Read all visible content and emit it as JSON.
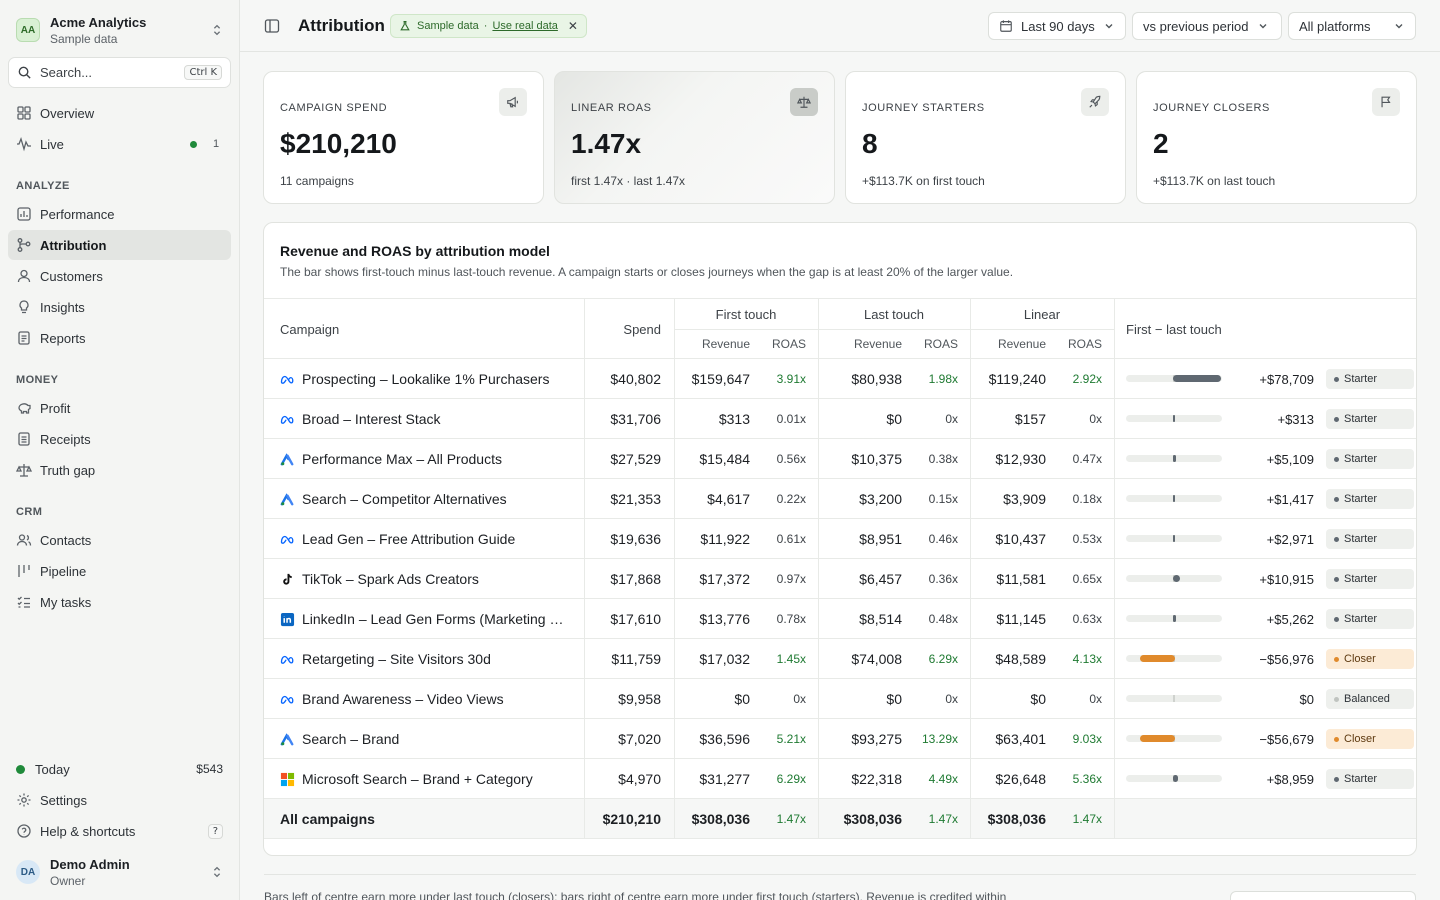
{
  "sidebar": {
    "org": {
      "initials": "AA",
      "name": "Acme Analytics",
      "sub": "Sample data"
    },
    "search": {
      "placeholder": "Search...",
      "shortcut": "Ctrl K"
    },
    "top_items": [
      {
        "label": "Overview",
        "icon": "grid-icon"
      },
      {
        "label": "Live",
        "icon": "activity-icon",
        "count": "1"
      }
    ],
    "sections": [
      {
        "label": "ANALYZE",
        "items": [
          "Performance",
          "Attribution",
          "Customers",
          "Insights",
          "Reports"
        ]
      },
      {
        "label": "MONEY",
        "items": [
          "Profit",
          "Receipts",
          "Truth gap"
        ]
      },
      {
        "label": "CRM",
        "items": [
          "Contacts",
          "Pipeline",
          "My tasks"
        ]
      }
    ],
    "active": "Attribution",
    "today": {
      "label": "Today",
      "value": "$543"
    },
    "settings": "Settings",
    "help": {
      "label": "Help & shortcuts",
      "key": "?"
    },
    "user": {
      "initials": "DA",
      "name": "Demo Admin",
      "role": "Owner"
    }
  },
  "header": {
    "title": "Attribution",
    "chip": {
      "label": "Sample data",
      "sep": "·",
      "link": "Use real data"
    },
    "date_range": "Last 90 days",
    "compare": "vs previous period",
    "platforms": "All platforms"
  },
  "cards": [
    {
      "label": "CAMPAIGN SPEND",
      "value": "$210,210",
      "sub": "11 campaigns",
      "icon": "megaphone-icon"
    },
    {
      "label": "LINEAR ROAS",
      "value": "1.47x",
      "sub": "first 1.47x · last 1.47x",
      "icon": "scale-icon"
    },
    {
      "label": "JOURNEY STARTERS",
      "value": "8",
      "sub": "+$113.7K on first touch",
      "icon": "rocket-icon"
    },
    {
      "label": "JOURNEY CLOSERS",
      "value": "2",
      "sub": "+$113.7K on last touch",
      "icon": "flag-icon"
    }
  ],
  "table": {
    "title": "Revenue and ROAS by attribution model",
    "description": "The bar shows first-touch minus last-touch revenue. A campaign starts or closes journeys when the gap is at least 20% of the larger value.",
    "headers": {
      "campaign": "Campaign",
      "spend": "Spend",
      "first": "First touch",
      "last": "Last touch",
      "linear": "Linear",
      "revenue": "Revenue",
      "roas": "ROAS",
      "gap": "First − last touch"
    },
    "rows": [
      {
        "platform": "meta",
        "campaign": "Prospecting – Lookalike 1% Purchasers",
        "spend": "$40,802",
        "first_rev": "$159,647",
        "first_roas": "3.91x",
        "last_rev": "$80,938",
        "last_roas": "1.98x",
        "lin_rev": "$119,240",
        "lin_roas": "2.92x",
        "gap": "+$78,709",
        "gap_value": 78709,
        "role": "Starter"
      },
      {
        "platform": "meta",
        "campaign": "Broad – Interest Stack",
        "spend": "$31,706",
        "first_rev": "$313",
        "first_roas": "0.01x",
        "last_rev": "$0",
        "last_roas": "0x",
        "lin_rev": "$157",
        "lin_roas": "0x",
        "gap": "+$313",
        "gap_value": 313,
        "role": "Starter"
      },
      {
        "platform": "google",
        "campaign": "Performance Max – All Products",
        "spend": "$27,529",
        "first_rev": "$15,484",
        "first_roas": "0.56x",
        "last_rev": "$10,375",
        "last_roas": "0.38x",
        "lin_rev": "$12,930",
        "lin_roas": "0.47x",
        "gap": "+$5,109",
        "gap_value": 5109,
        "role": "Starter"
      },
      {
        "platform": "google",
        "campaign": "Search – Competitor Alternatives",
        "spend": "$21,353",
        "first_rev": "$4,617",
        "first_roas": "0.22x",
        "last_rev": "$3,200",
        "last_roas": "0.15x",
        "lin_rev": "$3,909",
        "lin_roas": "0.18x",
        "gap": "+$1,417",
        "gap_value": 1417,
        "role": "Starter"
      },
      {
        "platform": "meta",
        "campaign": "Lead Gen – Free Attribution Guide",
        "spend": "$19,636",
        "first_rev": "$11,922",
        "first_roas": "0.61x",
        "last_rev": "$8,951",
        "last_roas": "0.46x",
        "lin_rev": "$10,437",
        "lin_roas": "0.53x",
        "gap": "+$2,971",
        "gap_value": 2971,
        "role": "Starter"
      },
      {
        "platform": "tiktok",
        "campaign": "TikTok – Spark Ads Creators",
        "spend": "$17,868",
        "first_rev": "$17,372",
        "first_roas": "0.97x",
        "last_rev": "$6,457",
        "last_roas": "0.36x",
        "lin_rev": "$11,581",
        "lin_roas": "0.65x",
        "gap": "+$10,915",
        "gap_value": 10915,
        "role": "Starter"
      },
      {
        "platform": "linkedin",
        "campaign": "LinkedIn – Lead Gen Forms (Marketing …",
        "spend": "$17,610",
        "first_rev": "$13,776",
        "first_roas": "0.78x",
        "last_rev": "$8,514",
        "last_roas": "0.48x",
        "lin_rev": "$11,145",
        "lin_roas": "0.63x",
        "gap": "+$5,262",
        "gap_value": 5262,
        "role": "Starter"
      },
      {
        "platform": "meta",
        "campaign": "Retargeting – Site Visitors 30d",
        "spend": "$11,759",
        "first_rev": "$17,032",
        "first_roas": "1.45x",
        "last_rev": "$74,008",
        "last_roas": "6.29x",
        "lin_rev": "$48,589",
        "lin_roas": "4.13x",
        "gap": "−$56,976",
        "gap_value": -56976,
        "role": "Closer"
      },
      {
        "platform": "meta",
        "campaign": "Brand Awareness – Video Views",
        "spend": "$9,958",
        "first_rev": "$0",
        "first_roas": "0x",
        "last_rev": "$0",
        "last_roas": "0x",
        "lin_rev": "$0",
        "lin_roas": "0x",
        "gap": "$0",
        "gap_value": 0,
        "role": "Balanced"
      },
      {
        "platform": "google",
        "campaign": "Search – Brand",
        "spend": "$7,020",
        "first_rev": "$36,596",
        "first_roas": "5.21x",
        "last_rev": "$93,275",
        "last_roas": "13.29x",
        "lin_rev": "$63,401",
        "lin_roas": "9.03x",
        "gap": "−$56,679",
        "gap_value": -56679,
        "role": "Closer"
      },
      {
        "platform": "microsoft",
        "campaign": "Microsoft Search – Brand + Category",
        "spend": "$4,970",
        "first_rev": "$31,277",
        "first_roas": "6.29x",
        "last_rev": "$22,318",
        "last_roas": "4.49x",
        "lin_rev": "$26,648",
        "lin_roas": "5.36x",
        "gap": "+$8,959",
        "gap_value": 8959,
        "role": "Starter"
      }
    ],
    "total": {
      "campaign": "All campaigns",
      "spend": "$210,210",
      "first_rev": "$308,036",
      "first_roas": "1.47x",
      "last_rev": "$308,036",
      "last_roas": "1.47x",
      "lin_rev": "$308,036",
      "lin_roas": "1.47x"
    }
  },
  "footnote": "Bars left of centre earn more under last touch (closers); bars right of centre earn more under first touch (starters). Revenue is credited within",
  "colors": {
    "starter": "#5f6871",
    "closer": "#e08a2c",
    "green": "#1f7a32"
  }
}
